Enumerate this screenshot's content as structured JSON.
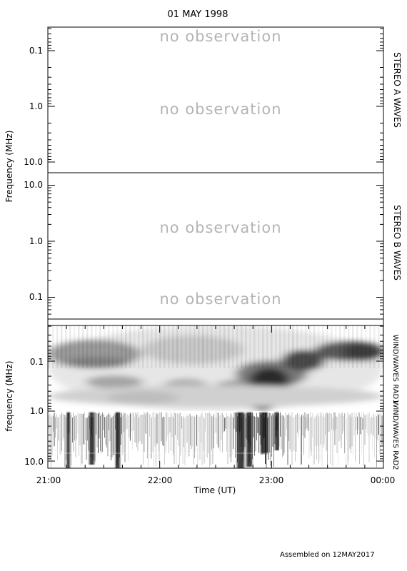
{
  "title": "01 MAY 1998",
  "footer": "Assembled on 12MAY2017",
  "no_observation_text": "no observation",
  "panels": {
    "stereo_a": {
      "label": "STEREO A WAVES",
      "ylabel": "Frequency (MHz)"
    },
    "stereo_b": {
      "label": "STEREO B WAVES"
    },
    "wind": {
      "label_upper": "WIND/WAVES RAD1",
      "label_lower": "WIND/WAVES RAD2",
      "ylabel": "frequency (MHz)"
    }
  },
  "chart_data": [
    {
      "type": "heatmap",
      "title": "01 MAY 1998",
      "panel": "STEREO A WAVES",
      "ylabel": "Frequency (MHz)",
      "yscale": "log",
      "yticks": [
        "0.1",
        "1.0",
        "10.0"
      ],
      "ylim": [
        14.0,
        0.04
      ],
      "annotations": [
        "no observation",
        "no observation"
      ],
      "data": "none"
    },
    {
      "type": "heatmap",
      "panel": "STEREO B WAVES",
      "yscale": "log",
      "yticks": [
        "10.0",
        "1.0",
        "0.1"
      ],
      "ylim": [
        14.0,
        0.04
      ],
      "annotations": [
        "no observation",
        "no observation"
      ],
      "data": "none"
    },
    {
      "type": "heatmap",
      "panel": "WIND/WAVES",
      "ylabel": "frequency (MHz)",
      "xlabel": "Time (UT)",
      "yscale": "log",
      "yticks": [
        "0.1",
        "1.0",
        "10.0"
      ],
      "ylim": [
        14.0,
        0.02
      ],
      "xticks": [
        "21:00",
        "22:00",
        "23:00",
        "00:00"
      ],
      "xlim": [
        "21:00",
        "00:00"
      ],
      "bands": [
        "WIND/WAVES RAD1",
        "WIND/WAVES RAD2"
      ]
    }
  ]
}
